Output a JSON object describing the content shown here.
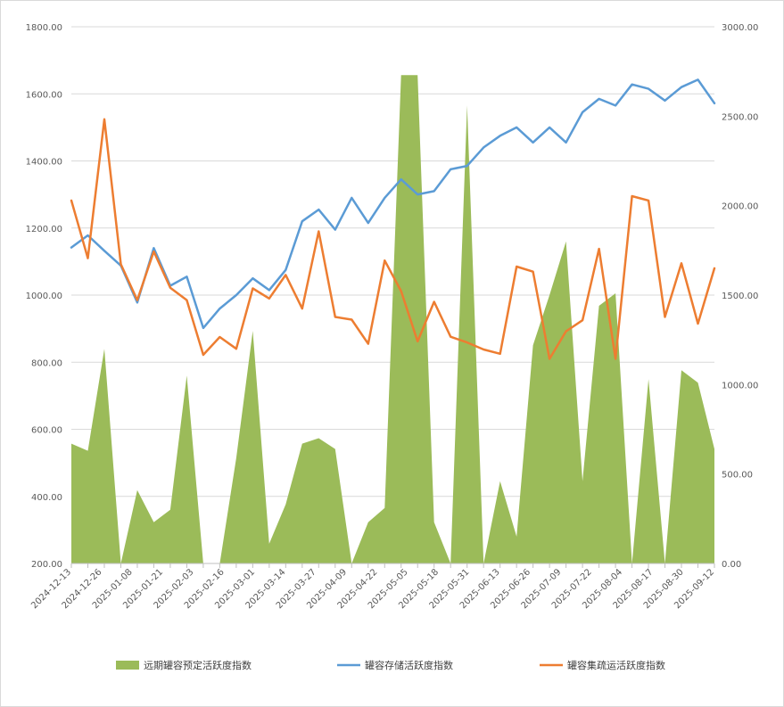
{
  "chart_data": {
    "type": "combo",
    "title": "",
    "x_tick_labels": [
      "2024-12-13",
      "2024-12-26",
      "2025-01-08",
      "2025-01-21",
      "2025-02-03",
      "2025-02-16",
      "2025-03-01",
      "2025-03-14",
      "2025-03-27",
      "2025-04-09",
      "2025-04-22",
      "2025-05-05",
      "2025-05-18",
      "2025-05-31",
      "2025-06-13",
      "2025-06-26",
      "2025-07-09",
      "2025-07-22",
      "2025-08-04",
      "2025-08-17",
      "2025-08-30",
      "2025-09-12"
    ],
    "y_left": {
      "min": 200,
      "max": 1800,
      "ticks": [
        "200.00",
        "400.00",
        "600.00",
        "800.00",
        "1000.00",
        "1200.00",
        "1400.00",
        "1600.00",
        "1800.00"
      ]
    },
    "y_right": {
      "min": 0,
      "max": 3000,
      "ticks": [
        "0.00",
        "500.00",
        "1000.00",
        "1500.00",
        "2000.00",
        "2500.00",
        "3000.00"
      ]
    },
    "series": [
      {
        "name": "远期罐容预定活跃度指数",
        "type": "area",
        "axis": "right",
        "color": "#9BBB59",
        "values": [
          670,
          630,
          1200,
          0,
          410,
          230,
          300,
          1050,
          0,
          0,
          590,
          1300,
          110,
          330,
          670,
          700,
          640,
          0,
          230,
          310,
          2730,
          2730,
          230,
          0,
          2560,
          0,
          460,
          150,
          1220,
          1500,
          1800,
          460,
          1440,
          1510,
          0,
          1030,
          0,
          1080,
          1010,
          640
        ]
      },
      {
        "name": "罐容存储活跃度指数",
        "type": "line",
        "axis": "left",
        "color": "#5B9BD5",
        "values": [
          1142,
          1178,
          1132,
          1088,
          978,
          1140,
          1028,
          1055,
          902,
          960,
          1000,
          1050,
          1015,
          1075,
          1220,
          1255,
          1195,
          1290,
          1215,
          1290,
          1345,
          1300,
          1310,
          1375,
          1385,
          1440,
          1475,
          1500,
          1455,
          1500,
          1455,
          1545,
          1585,
          1565,
          1628,
          1615,
          1580,
          1620,
          1642,
          1572
        ]
      },
      {
        "name": "罐容集疏运活跃度指数",
        "type": "line",
        "axis": "left",
        "color": "#ED7D31",
        "values": [
          1282,
          1110,
          1524,
          1092,
          985,
          1130,
          1022,
          985,
          822,
          875,
          840,
          1020,
          990,
          1060,
          960,
          1190,
          935,
          927,
          855,
          1103,
          1012,
          862,
          980,
          876,
          859,
          838,
          825,
          1085,
          1070,
          810,
          892,
          925,
          1138,
          810,
          1295,
          1282,
          935,
          1095,
          915,
          1080
        ]
      }
    ],
    "legend_position": "bottom",
    "grid": true
  }
}
